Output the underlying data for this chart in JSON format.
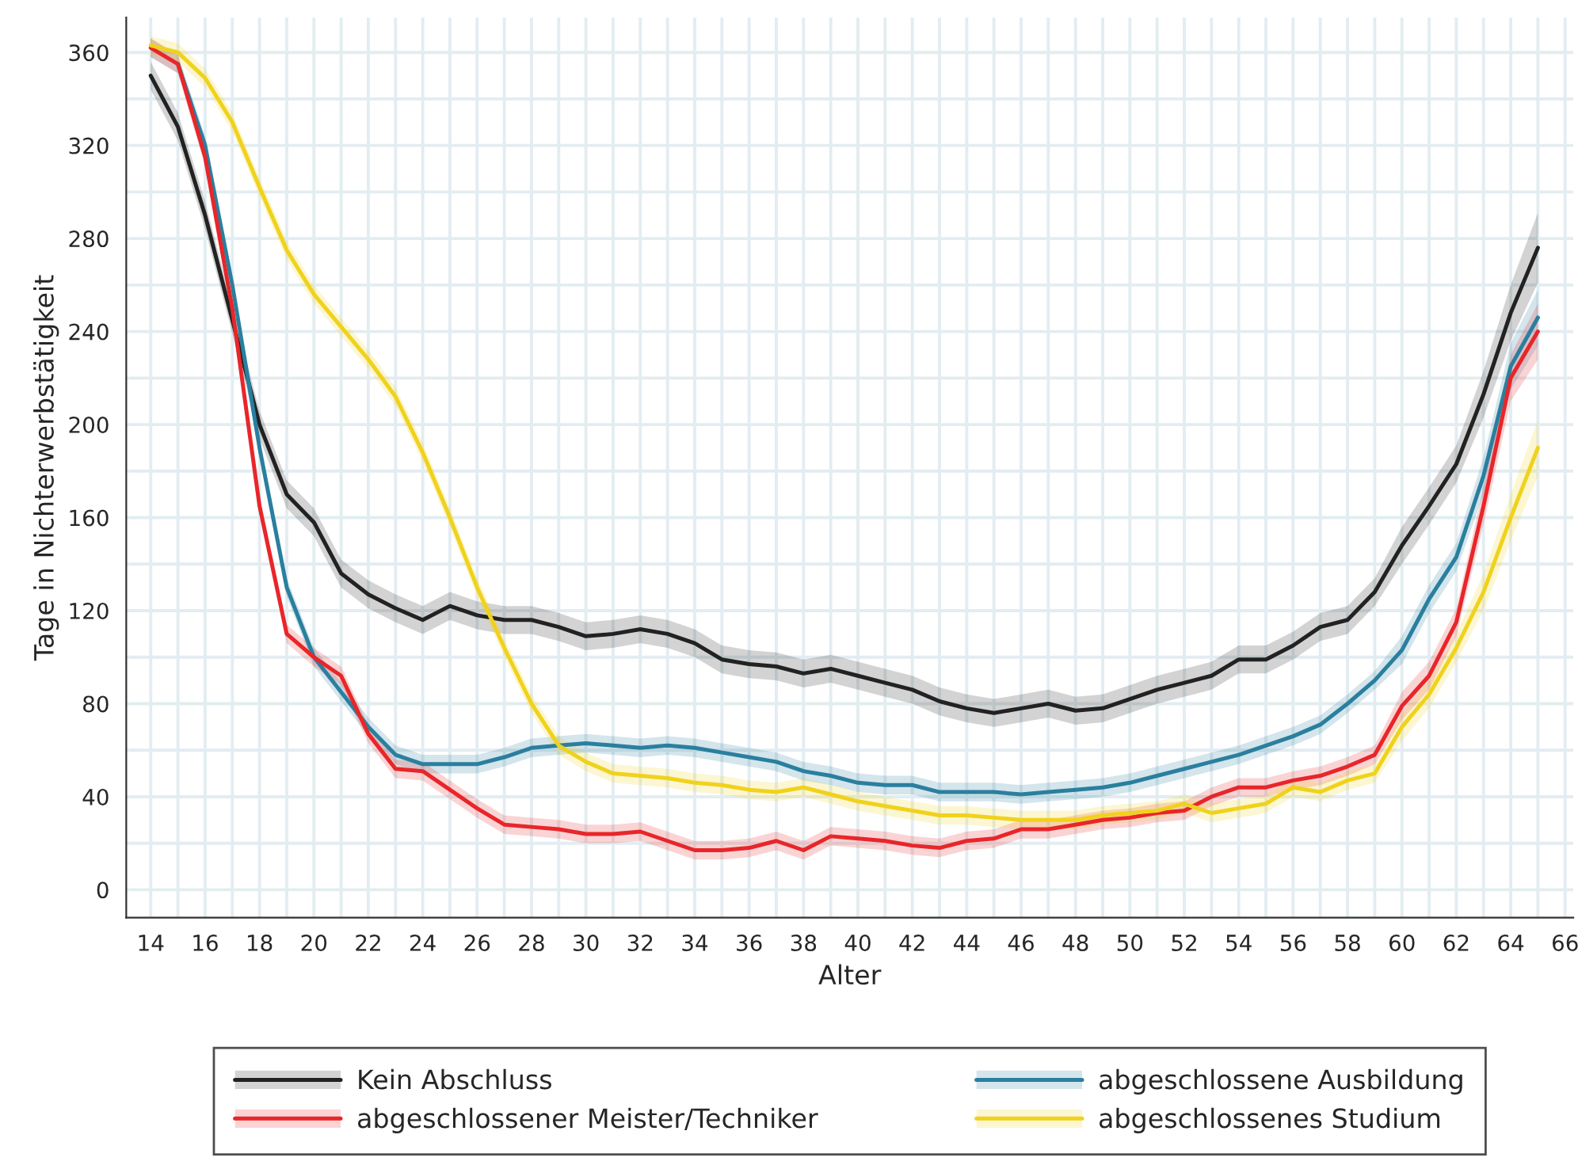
{
  "chart_data": {
    "type": "line",
    "xlabel": "Alter",
    "ylabel": "Tage in Nichterwerbstätigkeit",
    "x": [
      14,
      15,
      16,
      17,
      18,
      19,
      20,
      21,
      22,
      23,
      24,
      25,
      26,
      27,
      28,
      29,
      30,
      31,
      32,
      33,
      34,
      35,
      36,
      37,
      38,
      39,
      40,
      41,
      42,
      43,
      44,
      45,
      46,
      47,
      48,
      49,
      50,
      51,
      52,
      53,
      54,
      55,
      56,
      57,
      58,
      59,
      60,
      61,
      62,
      63,
      64,
      65
    ],
    "series": [
      {
        "name": "Kein Abschluss",
        "color": "#222222",
        "values": [
          350,
          328,
          290,
          245,
          200,
          170,
          158,
          136,
          127,
          121,
          116,
          122,
          118,
          116,
          116,
          113,
          109,
          110,
          112,
          110,
          106,
          99,
          97,
          96,
          93,
          95,
          92,
          89,
          86,
          81,
          78,
          76,
          78,
          80,
          77,
          78,
          82,
          86,
          89,
          92,
          99,
          99,
          105,
          113,
          116,
          128,
          148,
          165,
          183,
          213,
          248,
          276
        ],
        "lower": [
          344,
          322,
          284,
          239,
          194,
          164,
          152,
          130,
          121,
          115,
          110,
          116,
          112,
          110,
          110,
          107,
          103,
          104,
          106,
          104,
          100,
          93,
          91,
          90,
          87,
          89,
          86,
          83,
          80,
          75,
          72,
          70,
          72,
          74,
          71,
          72,
          76,
          80,
          83,
          86,
          93,
          93,
          99,
          107,
          110,
          122,
          140,
          157,
          175,
          203,
          236,
          261
        ],
        "upper": [
          356,
          334,
          296,
          251,
          206,
          176,
          164,
          142,
          133,
          127,
          122,
          128,
          124,
          122,
          122,
          119,
          115,
          116,
          118,
          116,
          112,
          105,
          103,
          102,
          99,
          101,
          98,
          95,
          92,
          87,
          84,
          82,
          84,
          86,
          83,
          84,
          88,
          92,
          95,
          98,
          105,
          105,
          111,
          119,
          122,
          134,
          156,
          173,
          191,
          223,
          260,
          291
        ]
      },
      {
        "name": "abgeschlossene Ausbildung",
        "color": "#2a7f9e",
        "values": [
          null,
          355,
          320,
          260,
          190,
          130,
          100,
          85,
          70,
          58,
          54,
          54,
          54,
          57,
          61,
          62,
          63,
          62,
          61,
          62,
          61,
          59,
          57,
          55,
          51,
          49,
          46,
          45,
          45,
          42,
          42,
          42,
          41,
          42,
          43,
          44,
          46,
          49,
          52,
          55,
          58,
          62,
          66,
          71,
          80,
          90,
          103,
          125,
          143,
          178,
          225,
          246
        ],
        "lower": [
          358,
          351,
          316,
          256,
          186,
          126,
          96,
          81,
          66,
          54,
          50,
          50,
          50,
          53,
          57,
          58,
          59,
          58,
          57,
          58,
          57,
          55,
          53,
          51,
          47,
          45,
          42,
          41,
          41,
          38,
          38,
          38,
          37,
          38,
          39,
          40,
          42,
          45,
          48,
          51,
          54,
          58,
          62,
          67,
          76,
          86,
          97,
          119,
          137,
          170,
          215,
          234
        ],
        "upper": [
          366,
          359,
          324,
          264,
          194,
          134,
          104,
          89,
          74,
          62,
          58,
          58,
          58,
          61,
          65,
          66,
          67,
          66,
          65,
          66,
          65,
          63,
          61,
          59,
          55,
          53,
          50,
          49,
          49,
          46,
          46,
          46,
          45,
          46,
          47,
          48,
          50,
          53,
          56,
          59,
          62,
          66,
          70,
          75,
          84,
          94,
          109,
          131,
          149,
          186,
          235,
          258
        ]
      },
      {
        "name": "abgeschlossener Meister/Techniker",
        "color": "#e8262a",
        "values": [
          362,
          355,
          315,
          250,
          165,
          110,
          100,
          92,
          67,
          52,
          51,
          43,
          35,
          28,
          27,
          26,
          24,
          24,
          25,
          21,
          17,
          17,
          18,
          21,
          17,
          23,
          22,
          21,
          19,
          18,
          21,
          22,
          26,
          26,
          28,
          30,
          31,
          33,
          34,
          40,
          44,
          44,
          47,
          49,
          53,
          58,
          79,
          92,
          115,
          165,
          220,
          240
        ],
        "lower": [
          358,
          351,
          311,
          246,
          161,
          106,
          96,
          88,
          63,
          48,
          47,
          39,
          31,
          24,
          23,
          22,
          20,
          20,
          21,
          17,
          13,
          13,
          14,
          17,
          13,
          19,
          18,
          17,
          15,
          14,
          17,
          18,
          22,
          22,
          24,
          26,
          27,
          29,
          30,
          36,
          40,
          40,
          43,
          45,
          49,
          54,
          73,
          86,
          109,
          157,
          210,
          228
        ],
        "upper": [
          366,
          359,
          319,
          254,
          169,
          114,
          104,
          96,
          71,
          56,
          55,
          47,
          39,
          32,
          31,
          30,
          28,
          28,
          29,
          25,
          21,
          21,
          22,
          25,
          21,
          27,
          26,
          25,
          23,
          22,
          25,
          26,
          30,
          30,
          32,
          34,
          35,
          37,
          38,
          44,
          48,
          48,
          51,
          53,
          57,
          62,
          85,
          98,
          121,
          173,
          230,
          252
        ]
      },
      {
        "name": "abgeschlossenes Studium",
        "color": "#f0d21c",
        "values": [
          363,
          360,
          349,
          330,
          302,
          275,
          256,
          242,
          228,
          212,
          188,
          160,
          130,
          104,
          80,
          62,
          55,
          50,
          49,
          48,
          46,
          45,
          43,
          42,
          44,
          41,
          38,
          36,
          34,
          32,
          32,
          31,
          30,
          30,
          30,
          32,
          33,
          34,
          37,
          33,
          35,
          37,
          44,
          42,
          47,
          50,
          70,
          84,
          104,
          128,
          160,
          190
        ],
        "lower": [
          359,
          356,
          345,
          326,
          298,
          271,
          252,
          238,
          224,
          208,
          184,
          156,
          126,
          100,
          76,
          58,
          51,
          46,
          45,
          44,
          42,
          41,
          39,
          38,
          40,
          37,
          34,
          32,
          30,
          28,
          28,
          27,
          26,
          26,
          26,
          28,
          29,
          30,
          33,
          29,
          31,
          33,
          40,
          38,
          43,
          46,
          64,
          78,
          98,
          120,
          150,
          178
        ],
        "upper": [
          367,
          364,
          353,
          334,
          306,
          279,
          260,
          246,
          232,
          216,
          192,
          164,
          134,
          108,
          84,
          66,
          59,
          54,
          53,
          52,
          50,
          49,
          47,
          46,
          48,
          45,
          42,
          40,
          38,
          36,
          36,
          35,
          34,
          34,
          34,
          36,
          37,
          38,
          41,
          37,
          39,
          41,
          48,
          46,
          51,
          54,
          76,
          90,
          110,
          136,
          170,
          202
        ]
      }
    ],
    "xlim": [
      13.1,
      66.3
    ],
    "ylim": [
      -12,
      375
    ],
    "xticks": [
      14,
      {
        "value": 15,
        "label": null
      },
      16,
      {
        "value": 17,
        "label": null
      },
      18,
      {
        "value": 19,
        "label": null
      },
      20,
      {
        "value": 21,
        "label": null
      },
      22,
      {
        "value": 23,
        "label": null
      },
      24,
      {
        "value": 25,
        "label": null
      },
      26,
      {
        "value": 27,
        "label": null
      },
      28,
      {
        "value": 29,
        "label": null
      },
      30,
      {
        "value": 31,
        "label": null
      },
      32,
      {
        "value": 33,
        "label": null
      },
      34,
      {
        "value": 35,
        "label": null
      },
      36,
      {
        "value": 37,
        "label": null
      },
      38,
      {
        "value": 39,
        "label": null
      },
      40,
      {
        "value": 41,
        "label": null
      },
      42,
      {
        "value": 43,
        "label": null
      },
      44,
      {
        "value": 45,
        "label": null
      },
      46,
      {
        "value": 47,
        "label": null
      },
      48,
      {
        "value": 49,
        "label": null
      },
      50,
      {
        "value": 51,
        "label": null
      },
      52,
      {
        "value": 53,
        "label": null
      },
      54,
      {
        "value": 55,
        "label": null
      },
      56,
      {
        "value": 57,
        "label": null
      },
      58,
      {
        "value": 59,
        "label": null
      },
      60,
      {
        "value": 61,
        "label": null
      },
      62,
      {
        "value": 63,
        "label": null
      },
      64,
      {
        "value": 65,
        "label": null
      },
      66
    ],
    "yticks": [
      0,
      {
        "value": 20,
        "label": null
      },
      40,
      {
        "value": 60,
        "label": null
      },
      80,
      {
        "value": 100,
        "label": null
      },
      120,
      {
        "value": 140,
        "label": null
      },
      160,
      {
        "value": 180,
        "label": null
      },
      200,
      {
        "value": 220,
        "label": null
      },
      240,
      {
        "value": 260,
        "label": null
      },
      280,
      {
        "value": 300,
        "label": null
      },
      320,
      {
        "value": 340,
        "label": null
      },
      360
    ],
    "grid": true,
    "legend": "bottom",
    "marker": "none",
    "line_style": "solid"
  }
}
